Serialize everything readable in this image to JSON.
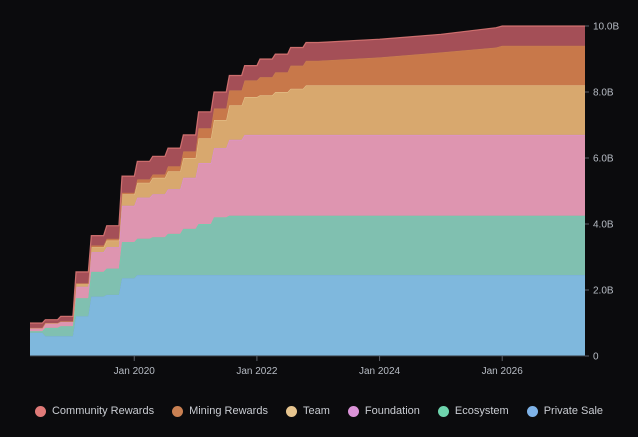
{
  "chart_data": {
    "type": "area",
    "stacked": true,
    "x_axis": {
      "tick_labels": [
        "Jan 2020",
        "Jan 2022",
        "Jan 2024",
        "Jan 2026"
      ],
      "tick_values": [
        2020,
        2022,
        2024,
        2026
      ],
      "range": [
        2018.3,
        2027.35
      ]
    },
    "y_axis": {
      "position": "right",
      "tick_labels": [
        "0",
        "2.0B",
        "4.0B",
        "6.0B",
        "8.0B",
        "10.0B"
      ],
      "tick_values": [
        0,
        2,
        4,
        6,
        8,
        10
      ],
      "range": [
        0,
        10
      ],
      "unit": "B"
    },
    "grid": false,
    "legend_position": "bottom",
    "x": [
      2018.3,
      2018.5,
      2018.55,
      2018.75,
      2018.8,
      2019.0,
      2019.05,
      2019.25,
      2019.3,
      2019.5,
      2019.55,
      2019.75,
      2019.8,
      2020.0,
      2020.05,
      2020.25,
      2020.3,
      2020.5,
      2020.55,
      2020.75,
      2020.8,
      2021.0,
      2021.05,
      2021.25,
      2021.3,
      2021.5,
      2021.55,
      2021.75,
      2021.8,
      2022.0,
      2022.05,
      2022.25,
      2022.3,
      2022.5,
      2022.55,
      2022.75,
      2022.8,
      2023.0,
      2024.0,
      2025.0,
      2025.9,
      2026.0,
      2027.35
    ],
    "series": [
      {
        "name": "Private Sale",
        "color": "#7fb8dd",
        "values": [
          0.7,
          0.7,
          0.6,
          0.6,
          0.6,
          0.6,
          1.2,
          1.2,
          1.8,
          1.8,
          1.85,
          1.85,
          2.35,
          2.35,
          2.45,
          2.45,
          2.45,
          2.45,
          2.45,
          2.45,
          2.45,
          2.45,
          2.45,
          2.45,
          2.45,
          2.45,
          2.45,
          2.45,
          2.45,
          2.45,
          2.45,
          2.45,
          2.45,
          2.45,
          2.45,
          2.45,
          2.45,
          2.45,
          2.45,
          2.45,
          2.45,
          2.45,
          2.45
        ]
      },
      {
        "name": "Ecosystem",
        "color": "#80c0b0",
        "values": [
          0.05,
          0.05,
          0.25,
          0.25,
          0.3,
          0.3,
          0.55,
          0.55,
          0.75,
          0.75,
          0.8,
          0.8,
          1.1,
          1.1,
          1.1,
          1.1,
          1.15,
          1.15,
          1.25,
          1.25,
          1.4,
          1.4,
          1.55,
          1.55,
          1.75,
          1.75,
          1.8,
          1.8,
          1.8,
          1.8,
          1.8,
          1.8,
          1.8,
          1.8,
          1.8,
          1.8,
          1.8,
          1.8,
          1.8,
          1.8,
          1.8,
          1.8,
          1.8
        ]
      },
      {
        "name": "Foundation",
        "color": "#de95b0",
        "values": [
          0.1,
          0.1,
          0.15,
          0.15,
          0.15,
          0.15,
          0.35,
          0.35,
          0.6,
          0.6,
          0.65,
          0.65,
          1.1,
          1.1,
          1.25,
          1.25,
          1.3,
          1.3,
          1.35,
          1.35,
          1.55,
          1.55,
          1.85,
          1.85,
          2.1,
          2.1,
          2.3,
          2.3,
          2.45,
          2.45,
          2.45,
          2.45,
          2.45,
          2.45,
          2.45,
          2.45,
          2.45,
          2.45,
          2.45,
          2.45,
          2.45,
          2.45,
          2.45
        ]
      },
      {
        "name": "Team",
        "color": "#d8a86e",
        "values": [
          0.0,
          0.0,
          0.0,
          0.0,
          0.0,
          0.0,
          0.1,
          0.1,
          0.15,
          0.15,
          0.2,
          0.2,
          0.35,
          0.35,
          0.45,
          0.45,
          0.5,
          0.5,
          0.55,
          0.55,
          0.6,
          0.6,
          0.75,
          0.75,
          0.85,
          0.85,
          1.05,
          1.05,
          1.15,
          1.15,
          1.2,
          1.2,
          1.3,
          1.3,
          1.4,
          1.4,
          1.5,
          1.5,
          1.5,
          1.5,
          1.5,
          1.5,
          1.5
        ]
      },
      {
        "name": "Mining Rewards",
        "color": "#c8784a",
        "values": [
          0.0,
          0.0,
          0.0,
          0.0,
          0.0,
          0.0,
          0.0,
          0.0,
          0.05,
          0.05,
          0.05,
          0.05,
          0.05,
          0.05,
          0.1,
          0.1,
          0.1,
          0.1,
          0.15,
          0.15,
          0.2,
          0.2,
          0.3,
          0.3,
          0.35,
          0.35,
          0.45,
          0.45,
          0.5,
          0.5,
          0.55,
          0.55,
          0.6,
          0.6,
          0.7,
          0.7,
          0.75,
          0.75,
          0.85,
          1.0,
          1.15,
          1.2,
          1.2
        ]
      },
      {
        "name": "Community Rewards",
        "color": "#a44f57",
        "values": [
          0.15,
          0.15,
          0.1,
          0.1,
          0.15,
          0.15,
          0.35,
          0.35,
          0.3,
          0.3,
          0.4,
          0.4,
          0.5,
          0.5,
          0.55,
          0.55,
          0.55,
          0.55,
          0.55,
          0.55,
          0.5,
          0.5,
          0.5,
          0.5,
          0.5,
          0.5,
          0.45,
          0.45,
          0.45,
          0.45,
          0.55,
          0.55,
          0.55,
          0.55,
          0.55,
          0.55,
          0.55,
          0.55,
          0.55,
          0.55,
          0.6,
          0.6,
          0.6
        ]
      }
    ],
    "legend": [
      {
        "label": "Community Rewards",
        "color": "#e07a78"
      },
      {
        "label": "Mining Rewards",
        "color": "#c98052"
      },
      {
        "label": "Team",
        "color": "#e7c58f"
      },
      {
        "label": "Foundation",
        "color": "#db93d8"
      },
      {
        "label": "Ecosystem",
        "color": "#6ed4ad"
      },
      {
        "label": "Private Sale",
        "color": "#7fb3e8"
      }
    ]
  }
}
